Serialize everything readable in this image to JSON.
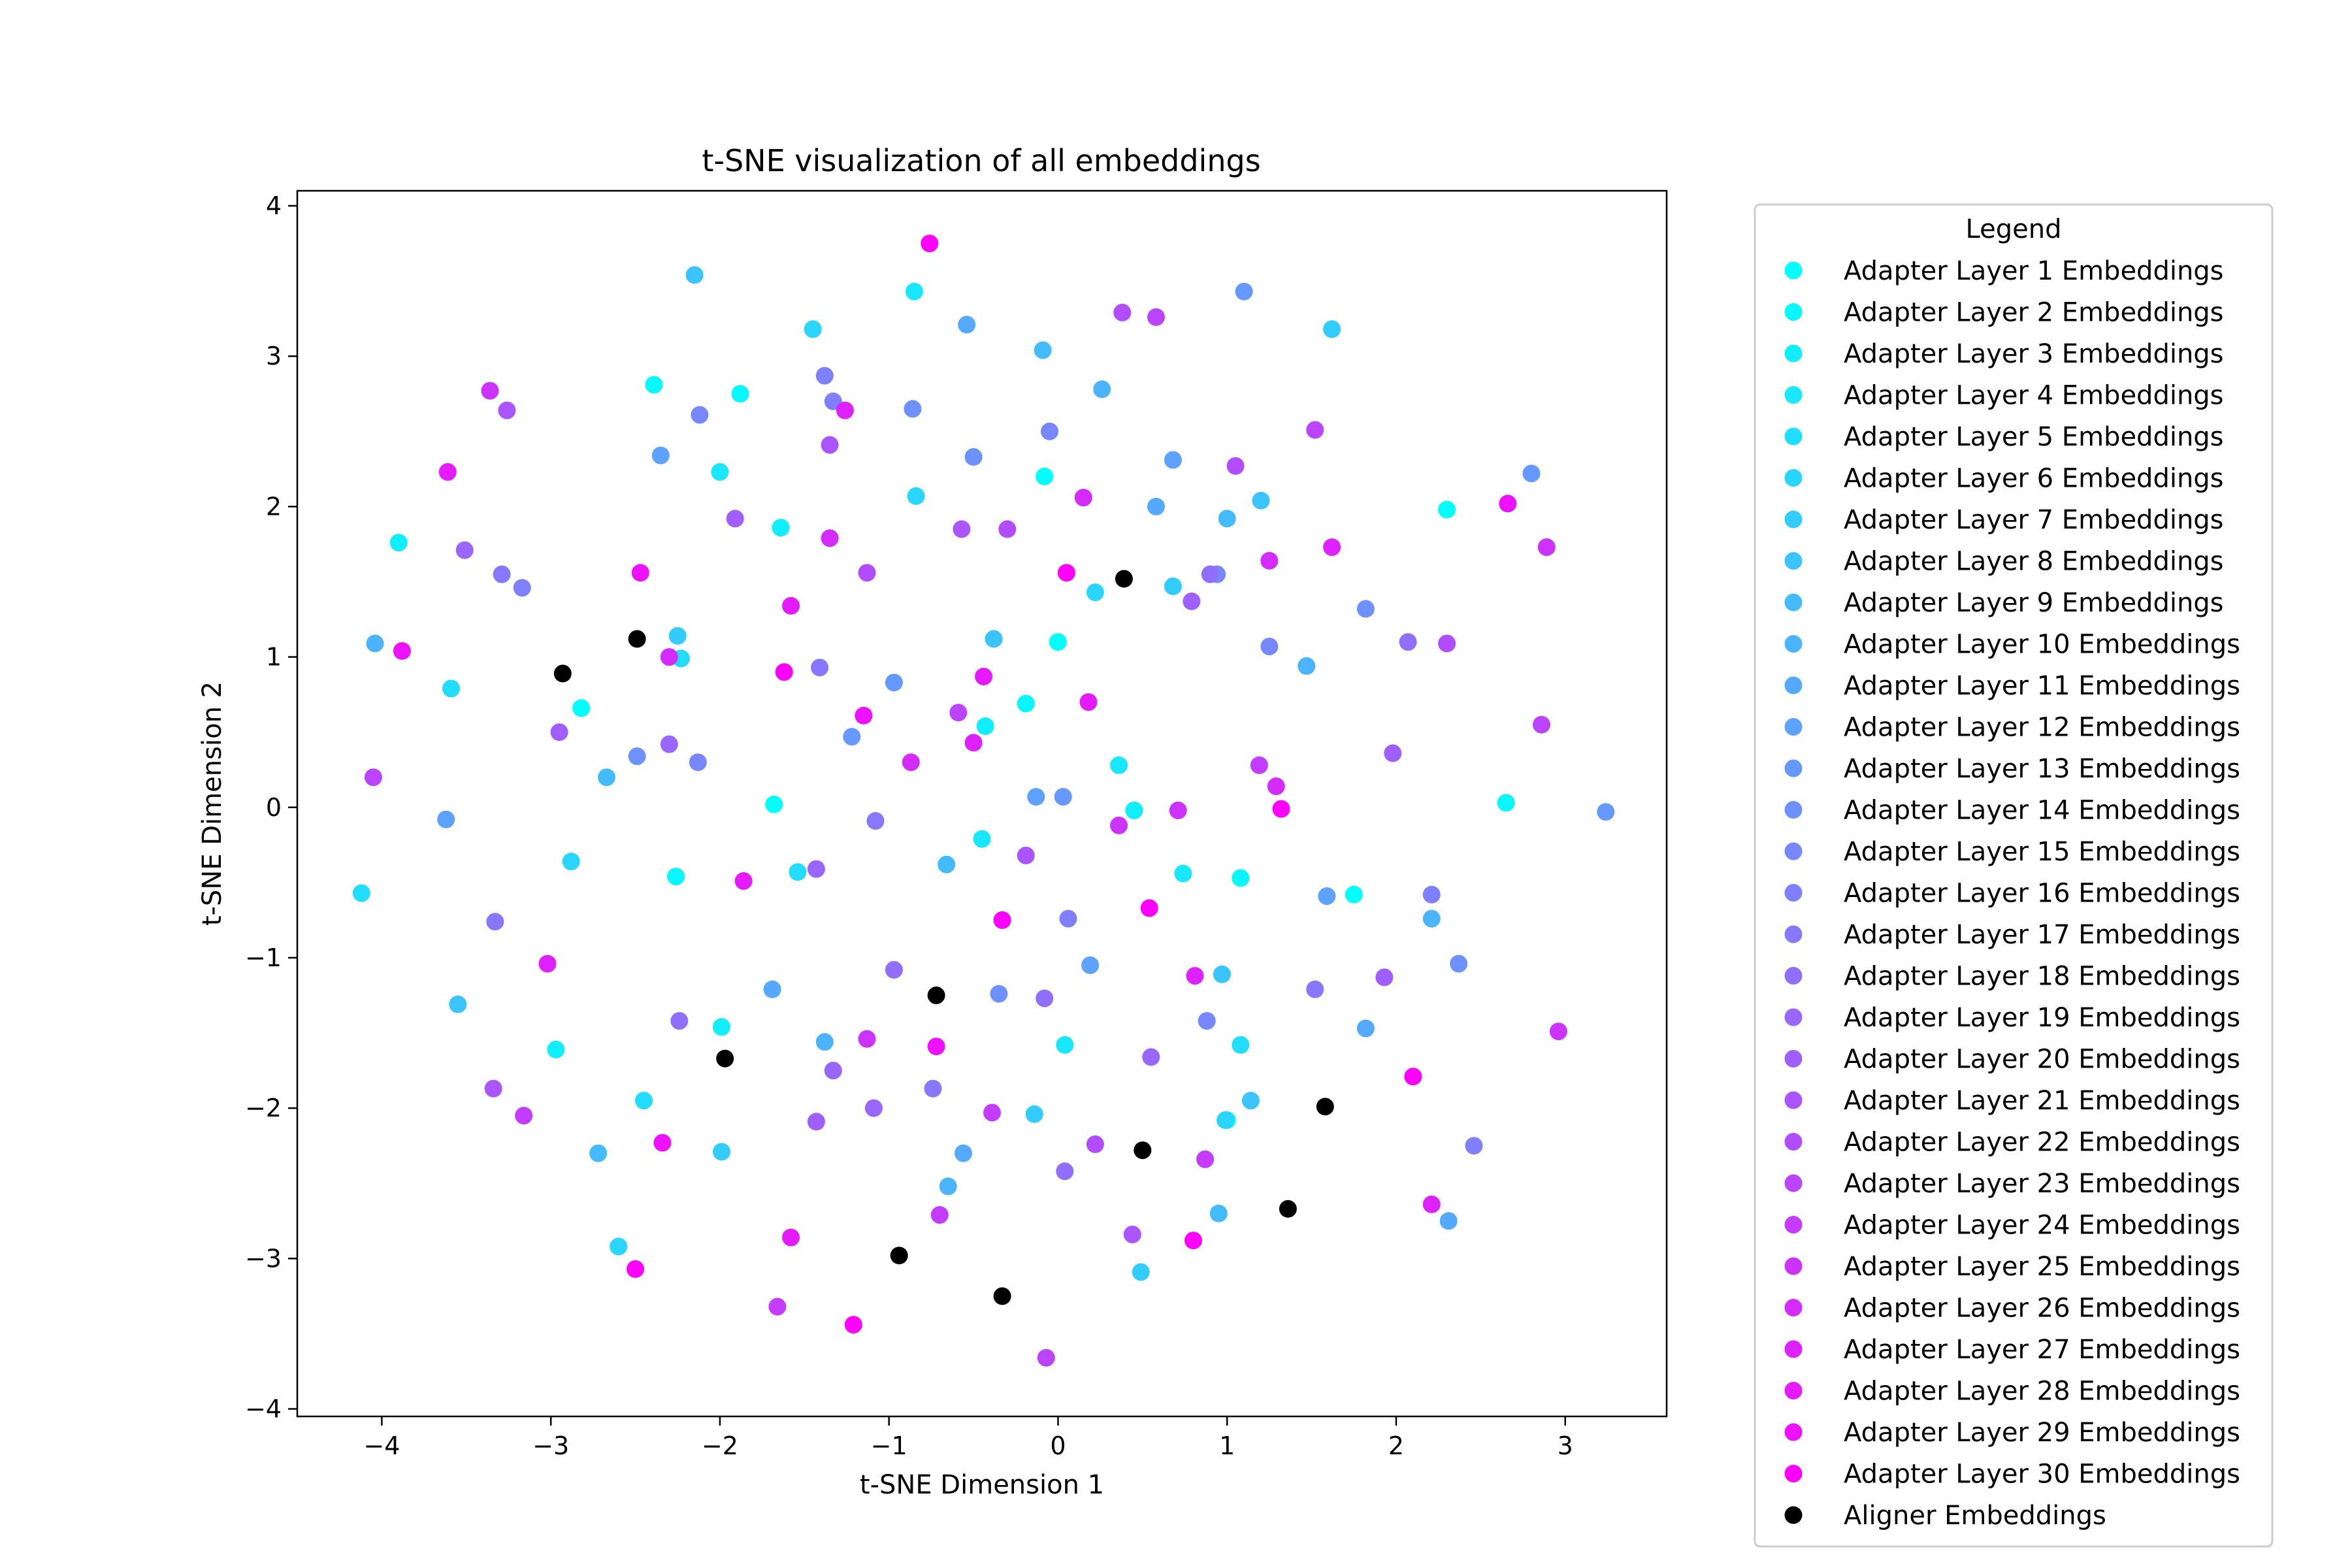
{
  "chart_data": {
    "type": "scatter",
    "title": "t-SNE visualization of all embeddings",
    "xlabel": "t-SNE Dimension 1",
    "ylabel": "t-SNE Dimension 2",
    "xlim": [
      -4.5,
      3.6
    ],
    "ylim": [
      -4.05,
      4.1
    ],
    "xticks": [
      -4,
      -3,
      -2,
      -1,
      0,
      1,
      2,
      3
    ],
    "yticks": [
      -4,
      -3,
      -2,
      -1,
      0,
      1,
      2,
      3,
      4
    ],
    "xtick_labels": [
      "−4",
      "−3",
      "−2",
      "−1",
      "0",
      "1",
      "2",
      "3"
    ],
    "ytick_labels": [
      "−4",
      "−3",
      "−2",
      "−1",
      "0",
      "1",
      "2",
      "3",
      "4"
    ],
    "grid": false,
    "legend_title": "Legend",
    "legend_position": "outside-right",
    "series": [
      {
        "name": "Adapter Layer 1 Embeddings",
        "color": "#00ffff",
        "points": [
          [
            -0.08,
            2.2
          ],
          [
            0.0,
            1.1
          ],
          [
            2.3,
            1.98
          ],
          [
            -1.68,
            0.02
          ],
          [
            1.75,
            -0.58
          ],
          [
            1.0,
            -2.08
          ],
          [
            -2.82,
            0.66
          ]
        ]
      },
      {
        "name": "Adapter Layer 2 Embeddings",
        "color": "#08f7ff",
        "points": [
          [
            -2.39,
            2.81
          ],
          [
            -1.88,
            2.75
          ],
          [
            -0.19,
            0.69
          ],
          [
            2.65,
            0.03
          ],
          [
            1.08,
            -0.47
          ],
          [
            -2.26,
            -0.46
          ]
        ]
      },
      {
        "name": "Adapter Layer 3 Embeddings",
        "color": "#11eeff",
        "points": [
          [
            -3.9,
            1.76
          ],
          [
            -1.64,
            1.86
          ],
          [
            -0.43,
            0.54
          ],
          [
            0.45,
            -0.02
          ],
          [
            -1.99,
            -1.46
          ],
          [
            -2.97,
            -1.61
          ]
        ]
      },
      {
        "name": "Adapter Layer 4 Embeddings",
        "color": "#19e6ff",
        "points": [
          [
            -0.85,
            3.43
          ],
          [
            -2.0,
            2.23
          ],
          [
            0.36,
            0.28
          ],
          [
            -0.45,
            -0.21
          ],
          [
            0.04,
            -1.58
          ],
          [
            0.74,
            -0.44
          ]
        ]
      },
      {
        "name": "Adapter Layer 5 Embeddings",
        "color": "#22ddff",
        "points": [
          [
            -4.12,
            -0.57
          ],
          [
            -3.59,
            0.79
          ],
          [
            -2.23,
            0.99
          ],
          [
            -1.54,
            -0.43
          ],
          [
            1.08,
            -1.58
          ],
          [
            -2.45,
            -1.95
          ]
        ]
      },
      {
        "name": "Adapter Layer 6 Embeddings",
        "color": "#2ad5ff",
        "points": [
          [
            -1.45,
            3.18
          ],
          [
            -0.84,
            2.07
          ],
          [
            0.22,
            1.43
          ],
          [
            -2.88,
            -0.36
          ],
          [
            0.99,
            -2.08
          ],
          [
            -2.6,
            -2.92
          ]
        ]
      },
      {
        "name": "Adapter Layer 7 Embeddings",
        "color": "#33ccff",
        "points": [
          [
            -2.25,
            1.14
          ],
          [
            0.68,
            1.47
          ],
          [
            -0.14,
            -2.04
          ],
          [
            -1.99,
            -2.29
          ],
          [
            0.49,
            -3.09
          ],
          [
            1.62,
            3.18
          ]
        ]
      },
      {
        "name": "Adapter Layer 8 Embeddings",
        "color": "#3bc4ff",
        "points": [
          [
            -2.15,
            3.54
          ],
          [
            1.2,
            2.04
          ],
          [
            -0.38,
            1.12
          ],
          [
            -3.55,
            -1.31
          ],
          [
            0.97,
            -1.11
          ],
          [
            1.14,
            -1.95
          ]
        ]
      },
      {
        "name": "Adapter Layer 9 Embeddings",
        "color": "#44bbff",
        "points": [
          [
            -0.09,
            3.04
          ],
          [
            1.0,
            1.92
          ],
          [
            -2.67,
            0.2
          ],
          [
            -0.66,
            -0.38
          ],
          [
            -2.72,
            -2.3
          ],
          [
            0.95,
            -2.7
          ]
        ]
      },
      {
        "name": "Adapter Layer 10 Embeddings",
        "color": "#4cb3ff",
        "points": [
          [
            -4.04,
            1.09
          ],
          [
            0.26,
            2.78
          ],
          [
            1.47,
            0.94
          ],
          [
            -1.38,
            -1.56
          ],
          [
            2.21,
            -0.74
          ],
          [
            -0.65,
            -2.52
          ]
        ]
      },
      {
        "name": "Adapter Layer 11 Embeddings",
        "color": "#55aaff",
        "points": [
          [
            -0.54,
            3.21
          ],
          [
            0.58,
            2.0
          ],
          [
            -1.69,
            -1.21
          ],
          [
            1.82,
            -1.47
          ],
          [
            -0.56,
            -2.3
          ],
          [
            2.31,
            -2.75
          ]
        ]
      },
      {
        "name": "Adapter Layer 12 Embeddings",
        "color": "#5da2ff",
        "points": [
          [
            -2.35,
            2.34
          ],
          [
            0.68,
            2.31
          ],
          [
            -3.62,
            -0.08
          ],
          [
            1.59,
            -0.59
          ],
          [
            -0.13,
            0.07
          ],
          [
            0.19,
            -1.05
          ]
        ]
      },
      {
        "name": "Adapter Layer 13 Embeddings",
        "color": "#6699ff",
        "points": [
          [
            1.1,
            3.43
          ],
          [
            2.8,
            2.22
          ],
          [
            -0.97,
            0.83
          ],
          [
            0.03,
            0.07
          ],
          [
            3.24,
            -0.03
          ],
          [
            -1.22,
            0.47
          ]
        ]
      },
      {
        "name": "Adapter Layer 14 Embeddings",
        "color": "#6e91ff",
        "points": [
          [
            -0.86,
            2.65
          ],
          [
            -0.5,
            2.33
          ],
          [
            1.82,
            1.32
          ],
          [
            -2.49,
            0.34
          ],
          [
            2.37,
            -1.04
          ],
          [
            -0.35,
            -1.24
          ]
        ]
      },
      {
        "name": "Adapter Layer 15 Embeddings",
        "color": "#7788ff",
        "points": [
          [
            -2.12,
            2.61
          ],
          [
            -0.05,
            2.5
          ],
          [
            0.94,
            1.55
          ],
          [
            1.25,
            1.07
          ],
          [
            -2.13,
            0.3
          ],
          [
            0.88,
            -1.42
          ]
        ]
      },
      {
        "name": "Adapter Layer 16 Embeddings",
        "color": "#7f80ff",
        "points": [
          [
            -1.38,
            2.87
          ],
          [
            -1.33,
            2.7
          ],
          [
            -3.17,
            1.46
          ],
          [
            0.06,
            -0.74
          ],
          [
            2.21,
            -0.58
          ],
          [
            2.46,
            -2.25
          ]
        ]
      },
      {
        "name": "Adapter Layer 17 Embeddings",
        "color": "#8877ff",
        "points": [
          [
            -3.29,
            1.55
          ],
          [
            -1.41,
            0.93
          ],
          [
            -1.08,
            -0.09
          ],
          [
            -3.33,
            -0.76
          ],
          [
            -0.74,
            -1.87
          ],
          [
            1.52,
            -1.21
          ]
        ]
      },
      {
        "name": "Adapter Layer 18 Embeddings",
        "color": "#906fff",
        "points": [
          [
            0.9,
            1.55
          ],
          [
            -0.97,
            -1.08
          ],
          [
            -2.24,
            -1.42
          ],
          [
            -0.08,
            -1.27
          ],
          [
            0.04,
            -2.42
          ],
          [
            2.07,
            1.1
          ]
        ]
      },
      {
        "name": "Adapter Layer 19 Embeddings",
        "color": "#9966ff",
        "points": [
          [
            -3.51,
            1.71
          ],
          [
            -2.3,
            0.42
          ],
          [
            -1.43,
            -0.41
          ],
          [
            -1.33,
            -1.75
          ],
          [
            0.55,
            -1.66
          ],
          [
            -1.09,
            -2.0
          ]
        ]
      },
      {
        "name": "Adapter Layer 20 Embeddings",
        "color": "#a15eff",
        "points": [
          [
            -1.91,
            1.92
          ],
          [
            0.79,
            1.37
          ],
          [
            -2.95,
            0.5
          ],
          [
            1.98,
            0.36
          ],
          [
            -1.43,
            -2.09
          ],
          [
            1.93,
            -1.13
          ]
        ]
      },
      {
        "name": "Adapter Layer 21 Embeddings",
        "color": "#aa55ff",
        "points": [
          [
            -3.26,
            2.64
          ],
          [
            -1.35,
            2.41
          ],
          [
            -0.57,
            1.85
          ],
          [
            -3.34,
            -1.87
          ],
          [
            -0.19,
            -0.32
          ],
          [
            0.44,
            -2.84
          ]
        ]
      },
      {
        "name": "Adapter Layer 22 Embeddings",
        "color": "#b24dff",
        "points": [
          [
            0.38,
            3.29
          ],
          [
            1.05,
            2.27
          ],
          [
            -0.3,
            1.85
          ],
          [
            -1.13,
            1.56
          ],
          [
            2.3,
            1.09
          ],
          [
            0.22,
            -2.24
          ]
        ]
      },
      {
        "name": "Adapter Layer 23 Embeddings",
        "color": "#bb44ff",
        "points": [
          [
            -4.05,
            0.2
          ],
          [
            0.58,
            3.26
          ],
          [
            1.52,
            2.51
          ],
          [
            2.86,
            0.55
          ],
          [
            -0.59,
            0.63
          ],
          [
            -0.07,
            -3.66
          ]
        ]
      },
      {
        "name": "Adapter Layer 24 Embeddings",
        "color": "#c33cff",
        "points": [
          [
            -3.16,
            -2.05
          ],
          [
            0.87,
            -2.34
          ],
          [
            -1.66,
            -3.32
          ],
          [
            -0.7,
            -2.71
          ],
          [
            -0.39,
            -2.03
          ],
          [
            1.19,
            0.28
          ]
        ]
      },
      {
        "name": "Adapter Layer 25 Embeddings",
        "color": "#cc33ff",
        "points": [
          [
            2.89,
            1.73
          ],
          [
            -1.13,
            -1.54
          ],
          [
            0.71,
            -0.02
          ],
          [
            0.36,
            -0.12
          ],
          [
            2.96,
            -1.49
          ],
          [
            -3.36,
            2.77
          ]
        ]
      },
      {
        "name": "Adapter Layer 26 Embeddings",
        "color": "#d42bff",
        "points": [
          [
            -1.35,
            1.79
          ],
          [
            0.15,
            2.06
          ],
          [
            1.25,
            1.64
          ],
          [
            -2.3,
            1.0
          ],
          [
            -0.87,
            0.3
          ],
          [
            1.29,
            0.14
          ]
        ]
      },
      {
        "name": "Adapter Layer 27 Embeddings",
        "color": "#dd22ff",
        "points": [
          [
            -3.02,
            -1.04
          ],
          [
            -1.26,
            2.64
          ],
          [
            1.62,
            1.73
          ],
          [
            -0.5,
            0.43
          ],
          [
            0.81,
            -1.12
          ],
          [
            2.21,
            -2.64
          ]
        ]
      },
      {
        "name": "Adapter Layer 28 Embeddings",
        "color": "#e51aff",
        "points": [
          [
            -3.61,
            2.23
          ],
          [
            -1.58,
            1.34
          ],
          [
            -0.44,
            0.87
          ],
          [
            0.18,
            0.7
          ],
          [
            -1.86,
            -0.49
          ],
          [
            -1.58,
            -2.86
          ]
        ]
      },
      {
        "name": "Adapter Layer 29 Embeddings",
        "color": "#ee11ff",
        "points": [
          [
            -3.88,
            1.04
          ],
          [
            -2.47,
            1.56
          ],
          [
            -1.15,
            0.61
          ],
          [
            -2.34,
            -2.23
          ],
          [
            -0.72,
            -1.59
          ],
          [
            2.66,
            2.02
          ]
        ]
      },
      {
        "name": "Adapter Layer 30 Embeddings",
        "color": "#ff00ff",
        "points": [
          [
            -0.76,
            3.75
          ],
          [
            -2.5,
            -3.07
          ],
          [
            1.32,
            -0.01
          ],
          [
            0.05,
            1.56
          ],
          [
            -1.62,
            0.9
          ],
          [
            -0.33,
            -0.75
          ],
          [
            -1.21,
            -3.44
          ],
          [
            0.54,
            -0.67
          ],
          [
            2.1,
            -1.79
          ],
          [
            0.8,
            -2.88
          ]
        ]
      },
      {
        "name": "Aligner Embeddings",
        "color": "#000000",
        "points": [
          [
            -2.93,
            0.89
          ],
          [
            -2.49,
            1.12
          ],
          [
            0.39,
            1.52
          ],
          [
            -0.72,
            -1.25
          ],
          [
            -1.97,
            -1.67
          ],
          [
            -0.94,
            -2.98
          ],
          [
            -0.33,
            -3.25
          ],
          [
            0.5,
            -2.28
          ],
          [
            1.58,
            -1.99
          ],
          [
            1.36,
            -2.67
          ]
        ]
      }
    ]
  }
}
